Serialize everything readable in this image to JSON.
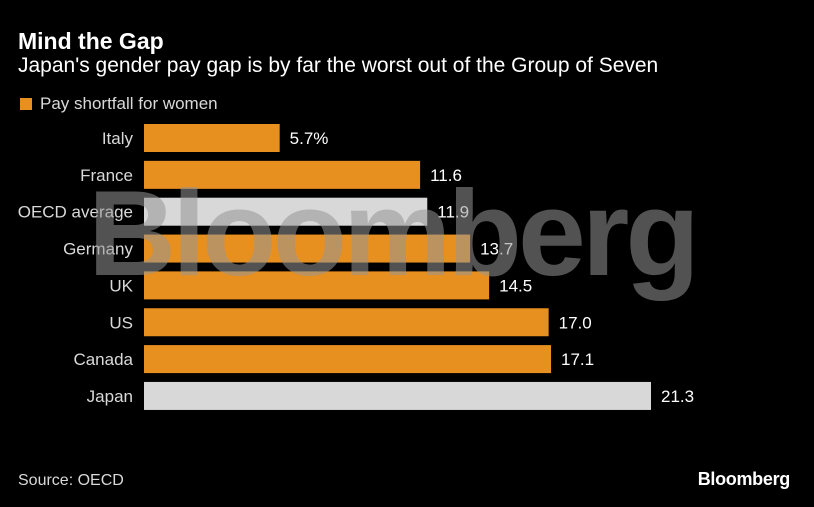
{
  "title": "Mind the Gap",
  "subtitle": "Japan's gender pay gap is by far the worst out of the Group of Seven",
  "source": "Source: OECD",
  "logo": "Bloomberg",
  "watermark": "Bloomberg",
  "colors": {
    "g7": "#e8901f",
    "highlight": "#d8d8d8",
    "background": "#000000"
  },
  "chart_data": {
    "type": "bar",
    "orientation": "horizontal",
    "categories": [
      "Italy",
      "France",
      "OECD average",
      "Germany",
      "UK",
      "US",
      "Canada",
      "Japan"
    ],
    "values": [
      5.7,
      11.6,
      11.9,
      13.7,
      14.5,
      17.0,
      17.1,
      21.3
    ],
    "value_labels": [
      "5.7%",
      "11.6",
      "11.9",
      "13.7",
      "14.5",
      "17.0",
      "17.1",
      "21.3"
    ],
    "highlighted": [
      "OECD average",
      "Japan"
    ],
    "series": [
      {
        "name": "Pay shortfall for women",
        "values": [
          5.7,
          11.6,
          11.9,
          13.7,
          14.5,
          17.0,
          17.1,
          21.3
        ]
      }
    ],
    "xlim": [
      0,
      21.3
    ],
    "legend": "top-left",
    "grid": false,
    "title": "Mind the Gap",
    "xlabel": "",
    "ylabel": ""
  }
}
